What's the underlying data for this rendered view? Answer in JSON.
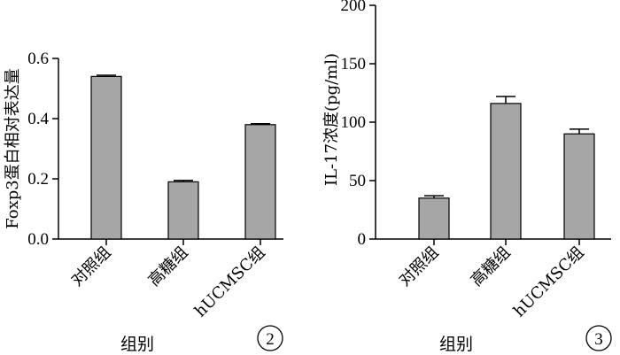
{
  "chart_data": [
    {
      "type": "bar",
      "categories": [
        "对照组",
        "高糖组",
        "hUCMSC组"
      ],
      "values": [
        0.54,
        0.19,
        0.38
      ],
      "errors": [
        0.004,
        0.005,
        0.003
      ],
      "ylabel": "Foxp3蛋白相对表达量",
      "xlabel": "组别",
      "ylim": [
        0,
        0.6
      ],
      "yticks": [
        0.0,
        0.2,
        0.4,
        0.6
      ],
      "ytick_labels": [
        "0.0",
        "0.2",
        "0.4",
        "0.6"
      ],
      "panel": "2"
    },
    {
      "type": "bar",
      "categories": [
        "对照组",
        "高糖组",
        "hUCMSC组"
      ],
      "values": [
        35,
        116,
        90
      ],
      "errors": [
        2,
        6,
        4
      ],
      "ylabel": "IL-17浓度(pg/ml)",
      "xlabel": "组别",
      "ylim": [
        0,
        200
      ],
      "yticks": [
        0,
        50,
        100,
        150,
        200
      ],
      "ytick_labels": [
        "0",
        "50",
        "100",
        "150",
        "200"
      ],
      "panel": "3"
    }
  ]
}
